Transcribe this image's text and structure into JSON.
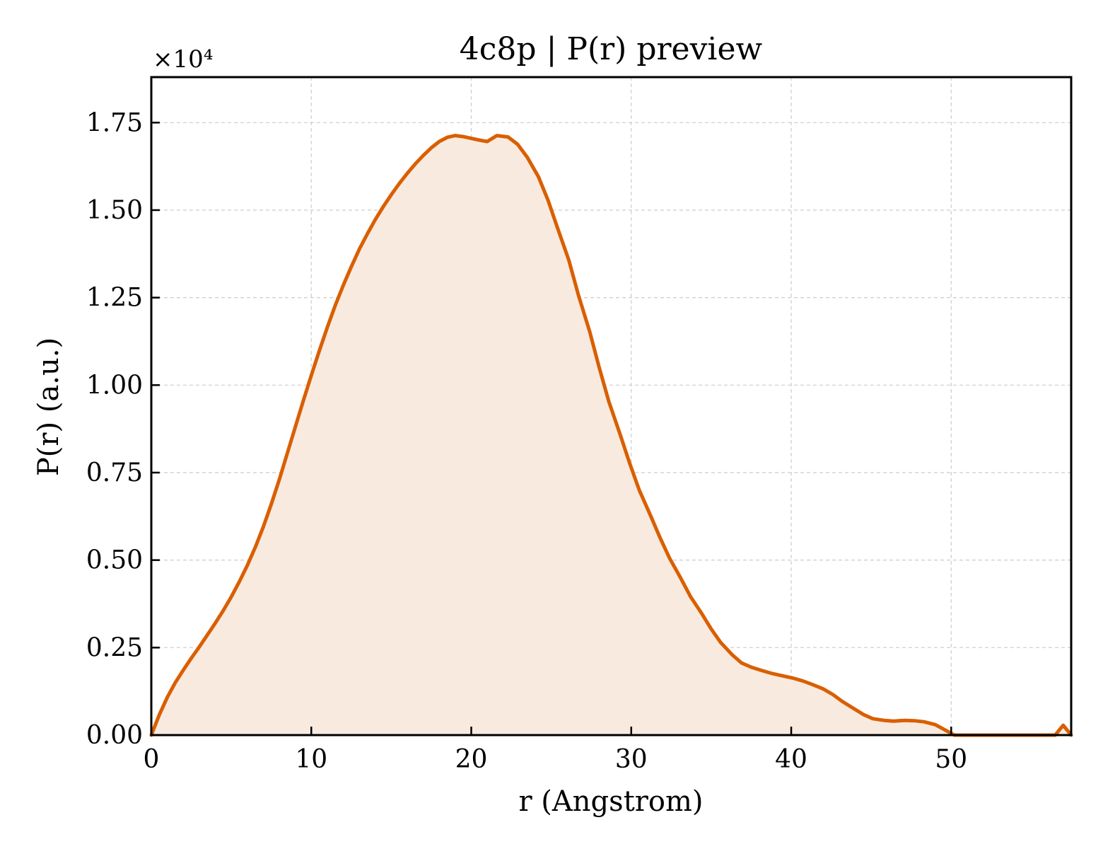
{
  "chart_data": {
    "type": "area",
    "title": "4c8p | P(r) preview",
    "xlabel": "r (Angstrom)",
    "ylabel": "P(r) (a.u.)",
    "y_offset_text": "×10⁴",
    "y_scale_factor": 10000,
    "xlim": [
      0,
      57.5
    ],
    "ylim": [
      0,
      18800
    ],
    "x_ticks": [
      0,
      10,
      20,
      30,
      40,
      50
    ],
    "x_tick_labels": [
      "0",
      "10",
      "20",
      "30",
      "40",
      "50"
    ],
    "y_ticks": [
      0,
      2500,
      5000,
      7500,
      10000,
      12500,
      15000,
      17500
    ],
    "y_tick_labels": [
      "0.00",
      "0.25",
      "0.50",
      "0.75",
      "1.00",
      "1.25",
      "1.50",
      "1.75"
    ],
    "grid": true,
    "series": [
      {
        "line_color": "#d95f02",
        "fill_color": "#f9eadf",
        "x": [
          0,
          0.5,
          1.0,
          1.5,
          2.0,
          2.5,
          3.0,
          3.5,
          4.0,
          4.5,
          5.0,
          5.5,
          6.0,
          6.5,
          7.0,
          7.5,
          8.0,
          8.5,
          9.0,
          9.5,
          10.0,
          10.5,
          11.0,
          11.5,
          12.0,
          12.5,
          13.0,
          13.5,
          14.0,
          14.5,
          15.0,
          15.5,
          16.0,
          16.5,
          17.0,
          17.5,
          18.0,
          18.5,
          19.0,
          19.5,
          20.0,
          20.5,
          21.0,
          21.6,
          22.3,
          22.9,
          23.5,
          24.2,
          24.8,
          25.4,
          26.1,
          26.7,
          27.4,
          28.0,
          28.6,
          29.3,
          29.9,
          30.5,
          31.2,
          31.8,
          32.4,
          33.1,
          33.7,
          34.4,
          35.0,
          35.6,
          36.3,
          36.9,
          37.5,
          38.2,
          38.8,
          39.4,
          40.1,
          40.7,
          41.3,
          42.0,
          42.6,
          43.2,
          43.9,
          44.5,
          45.1,
          45.8,
          46.4,
          47.1,
          47.7,
          48.3,
          49.0,
          49.6,
          50.2,
          50.9,
          51.5,
          52.1,
          52.8,
          53.4,
          54.0,
          55.0,
          56.0,
          56.5,
          57.0,
          57.5
        ],
        "y": [
          0,
          580,
          1080,
          1500,
          1860,
          2200,
          2520,
          2860,
          3200,
          3560,
          3950,
          4380,
          4850,
          5370,
          5950,
          6600,
          7300,
          8050,
          8800,
          9550,
          10280,
          10980,
          11650,
          12280,
          12850,
          13380,
          13880,
          14320,
          14730,
          15100,
          15440,
          15760,
          16050,
          16320,
          16560,
          16780,
          16960,
          17080,
          17130,
          17100,
          17050,
          17000,
          16960,
          17130,
          17090,
          16880,
          16510,
          15950,
          15280,
          14480,
          13570,
          12570,
          11530,
          10500,
          9530,
          8600,
          7770,
          7000,
          6280,
          5640,
          5050,
          4480,
          3960,
          3480,
          3030,
          2640,
          2300,
          2060,
          1940,
          1840,
          1760,
          1700,
          1630,
          1550,
          1450,
          1320,
          1160,
          960,
          760,
          590,
          470,
          420,
          400,
          420,
          410,
          380,
          300,
          150,
          0,
          0,
          0,
          0,
          0,
          0,
          0,
          0,
          0,
          0,
          280,
          0
        ]
      }
    ]
  }
}
